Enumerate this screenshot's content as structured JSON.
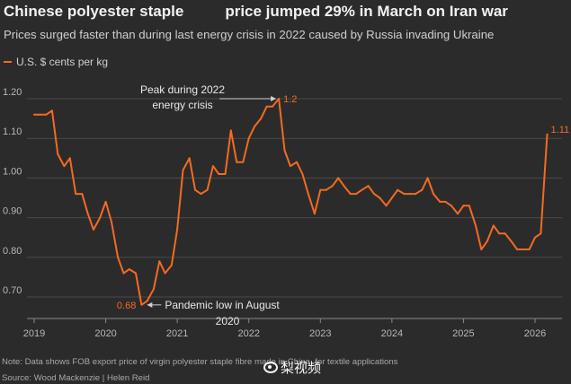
{
  "header": {
    "title_part1": "Chinese polyester staple",
    "title_part2": "price jumped 29% in March on Iran war",
    "subtitle": "Prices surged faster than during last energy crisis in 2022 caused by Russia invading Ukraine"
  },
  "footer": {
    "note": "Note: Data shows FOB export price of virgin polyester staple fibre made in China, for textile applications",
    "source": "Source: Wood Mackenzie | Helen Reid",
    "watermark": "梨视频"
  },
  "colors": {
    "background": "#2b2b2b",
    "line": "#f36b21",
    "grid": "#4a4a4a",
    "text": "#e8e8e8",
    "muted": "#b8b8b8"
  },
  "chart_data": {
    "type": "line",
    "title": "Chinese polyester staple price jumped 29% in March on Iran war",
    "xlabel": "",
    "ylabel": "",
    "legend": "U.S. $ cents per kg",
    "legend_position": "top-left",
    "ylim": [
      0.65,
      1.23
    ],
    "xlim": [
      2019.0,
      2026.35
    ],
    "yticks": [
      "0.70",
      "0.80",
      "0.90",
      "1.00",
      "1.10",
      "1.20"
    ],
    "ytick_values": [
      0.7,
      0.8,
      0.9,
      1.0,
      1.1,
      1.2
    ],
    "xticks": [
      "2019",
      "2020",
      "2021",
      "2022",
      "2023",
      "2024",
      "2025",
      "2026"
    ],
    "xtick_values": [
      2019,
      2020,
      2021,
      2022,
      2023,
      2024,
      2025,
      2026
    ],
    "grid": true,
    "series": [
      {
        "name": "U.S. $ cents per kg",
        "x": [
          2019.0,
          2019.08,
          2019.17,
          2019.25,
          2019.33,
          2019.42,
          2019.5,
          2019.58,
          2019.67,
          2019.75,
          2019.83,
          2019.92,
          2020.0,
          2020.08,
          2020.17,
          2020.25,
          2020.33,
          2020.42,
          2020.5,
          2020.58,
          2020.67,
          2020.75,
          2020.83,
          2020.92,
          2021.0,
          2021.08,
          2021.17,
          2021.25,
          2021.33,
          2021.42,
          2021.5,
          2021.58,
          2021.67,
          2021.75,
          2021.83,
          2021.92,
          2022.0,
          2022.08,
          2022.17,
          2022.25,
          2022.33,
          2022.42,
          2022.5,
          2022.58,
          2022.67,
          2022.75,
          2022.83,
          2022.92,
          2023.0,
          2023.08,
          2023.17,
          2023.25,
          2023.33,
          2023.42,
          2023.5,
          2023.58,
          2023.67,
          2023.75,
          2023.83,
          2023.92,
          2024.0,
          2024.08,
          2024.17,
          2024.25,
          2024.33,
          2024.42,
          2024.5,
          2024.58,
          2024.67,
          2024.75,
          2024.83,
          2024.92,
          2025.0,
          2025.08,
          2025.17,
          2025.25,
          2025.33,
          2025.42,
          2025.5,
          2025.58,
          2025.67,
          2025.75,
          2025.83,
          2025.92,
          2026.0,
          2026.08,
          2026.17
        ],
        "values": [
          1.16,
          1.16,
          1.16,
          1.17,
          1.06,
          1.03,
          1.05,
          0.96,
          0.96,
          0.91,
          0.87,
          0.9,
          0.94,
          0.89,
          0.8,
          0.76,
          0.77,
          0.76,
          0.68,
          0.69,
          0.72,
          0.79,
          0.76,
          0.78,
          0.87,
          1.02,
          1.05,
          0.97,
          0.96,
          0.97,
          1.03,
          1.01,
          1.01,
          1.12,
          1.04,
          1.04,
          1.1,
          1.13,
          1.15,
          1.18,
          1.18,
          1.2,
          1.07,
          1.03,
          1.04,
          1.01,
          0.96,
          0.91,
          0.97,
          0.97,
          0.98,
          1.0,
          0.98,
          0.96,
          0.96,
          0.97,
          0.98,
          0.96,
          0.95,
          0.93,
          0.95,
          0.97,
          0.96,
          0.96,
          0.96,
          0.97,
          1.0,
          0.96,
          0.94,
          0.94,
          0.93,
          0.91,
          0.93,
          0.93,
          0.88,
          0.82,
          0.84,
          0.88,
          0.86,
          0.86,
          0.84,
          0.82,
          0.82,
          0.82,
          0.85,
          0.86,
          1.11
        ]
      }
    ],
    "data_labels": [
      {
        "text": "1.2",
        "x": 2022.42,
        "y": 1.2
      },
      {
        "text": "0.68",
        "x": 2020.5,
        "y": 0.68
      },
      {
        "text": "1.11",
        "x": 2026.17,
        "y": 1.11
      }
    ],
    "annotations": [
      {
        "text_line1": "Peak during 2022",
        "text_line2": "energy crisis",
        "x": 2022.42,
        "y": 1.2
      },
      {
        "text_line1": "Pandemic low in August",
        "text_line2": "2020",
        "x": 2020.5,
        "y": 0.68
      }
    ]
  }
}
